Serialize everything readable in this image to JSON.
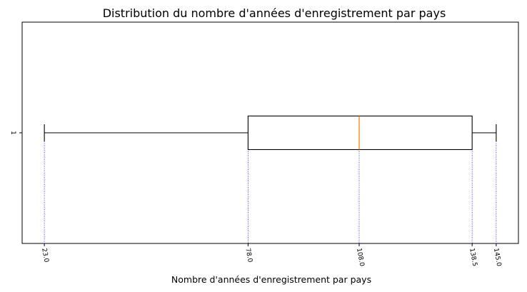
{
  "chart_data": {
    "type": "boxplot",
    "title": "Distribution du nombre d'années d'enregistrement par pays",
    "xlabel": "Nombre d'années d'enregistrement par pays",
    "ylabel": "",
    "category_label": "1",
    "box": {
      "whisker_low": 23.0,
      "q1": 78.0,
      "median": 108.0,
      "q3": 138.5,
      "whisker_high": 145.0
    },
    "xticks": [
      "23.0",
      "78.0",
      "108.0",
      "138.5",
      "145.0"
    ],
    "xtick_values": [
      23.0,
      78.0,
      108.0,
      138.5,
      145.0
    ],
    "xlim": [
      17.0,
      151.0
    ],
    "orientation": "horizontal",
    "reference_lines": "dotted vertical lines at each tick value",
    "colors": {
      "box": "#000000",
      "median": "#ff7f0e",
      "reference_lines": "#0000ff"
    }
  }
}
